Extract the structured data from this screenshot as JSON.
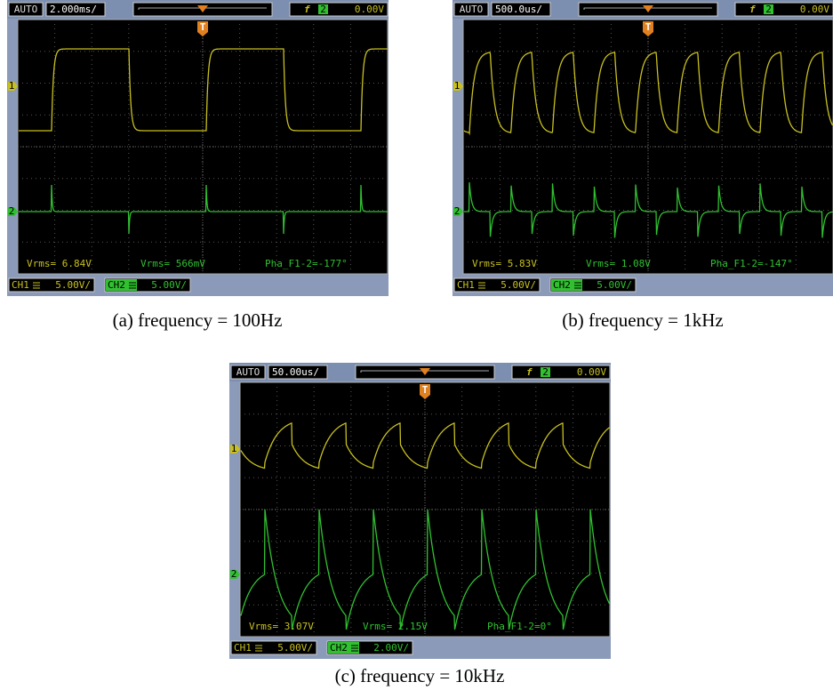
{
  "panels": [
    {
      "mode": "AUTO",
      "timebase": "2.000ms/",
      "trigger_marker": "T",
      "trigger_slope": "f",
      "trigger_channel": "2",
      "trigger_level": "0.00V",
      "channel_markers": [
        "1",
        "2"
      ],
      "measurements": [
        "Vrms= 6.84V",
        "Vrms= 566mV",
        "Pha_F1-2=-177°"
      ],
      "channels": [
        {
          "label": "CH1",
          "scale": "5.00V/"
        },
        {
          "label": "CH2",
          "scale": "5.00V/"
        }
      ],
      "caption": "(a) frequency = 100Hz"
    },
    {
      "mode": "AUTO",
      "timebase": "500.0us/",
      "trigger_marker": "T",
      "trigger_slope": "f",
      "trigger_channel": "2",
      "trigger_level": "0.00V",
      "channel_markers": [
        "1",
        "2"
      ],
      "measurements": [
        "Vrms= 5.83V",
        "Vrms= 1.08V",
        "Pha_F1-2=-147°"
      ],
      "channels": [
        {
          "label": "CH1",
          "scale": "5.00V/"
        },
        {
          "label": "CH2",
          "scale": "5.00V/"
        }
      ],
      "caption": "(b) frequency = 1kHz"
    },
    {
      "mode": "AUTO",
      "timebase": "50.00us/",
      "trigger_marker": "T",
      "trigger_slope": "f",
      "trigger_channel": "2",
      "trigger_level": "0.00V",
      "channel_markers": [
        "1",
        "2"
      ],
      "measurements": [
        "Vrms= 3.07V",
        "Vrms= 2.15V",
        "Pha_F1-2=0°"
      ],
      "channels": [
        {
          "label": "CH1",
          "scale": "5.00V/"
        },
        {
          "label": "CH2",
          "scale": "2.00V/"
        }
      ],
      "caption": "(c) frequency = 10kHz"
    }
  ]
}
